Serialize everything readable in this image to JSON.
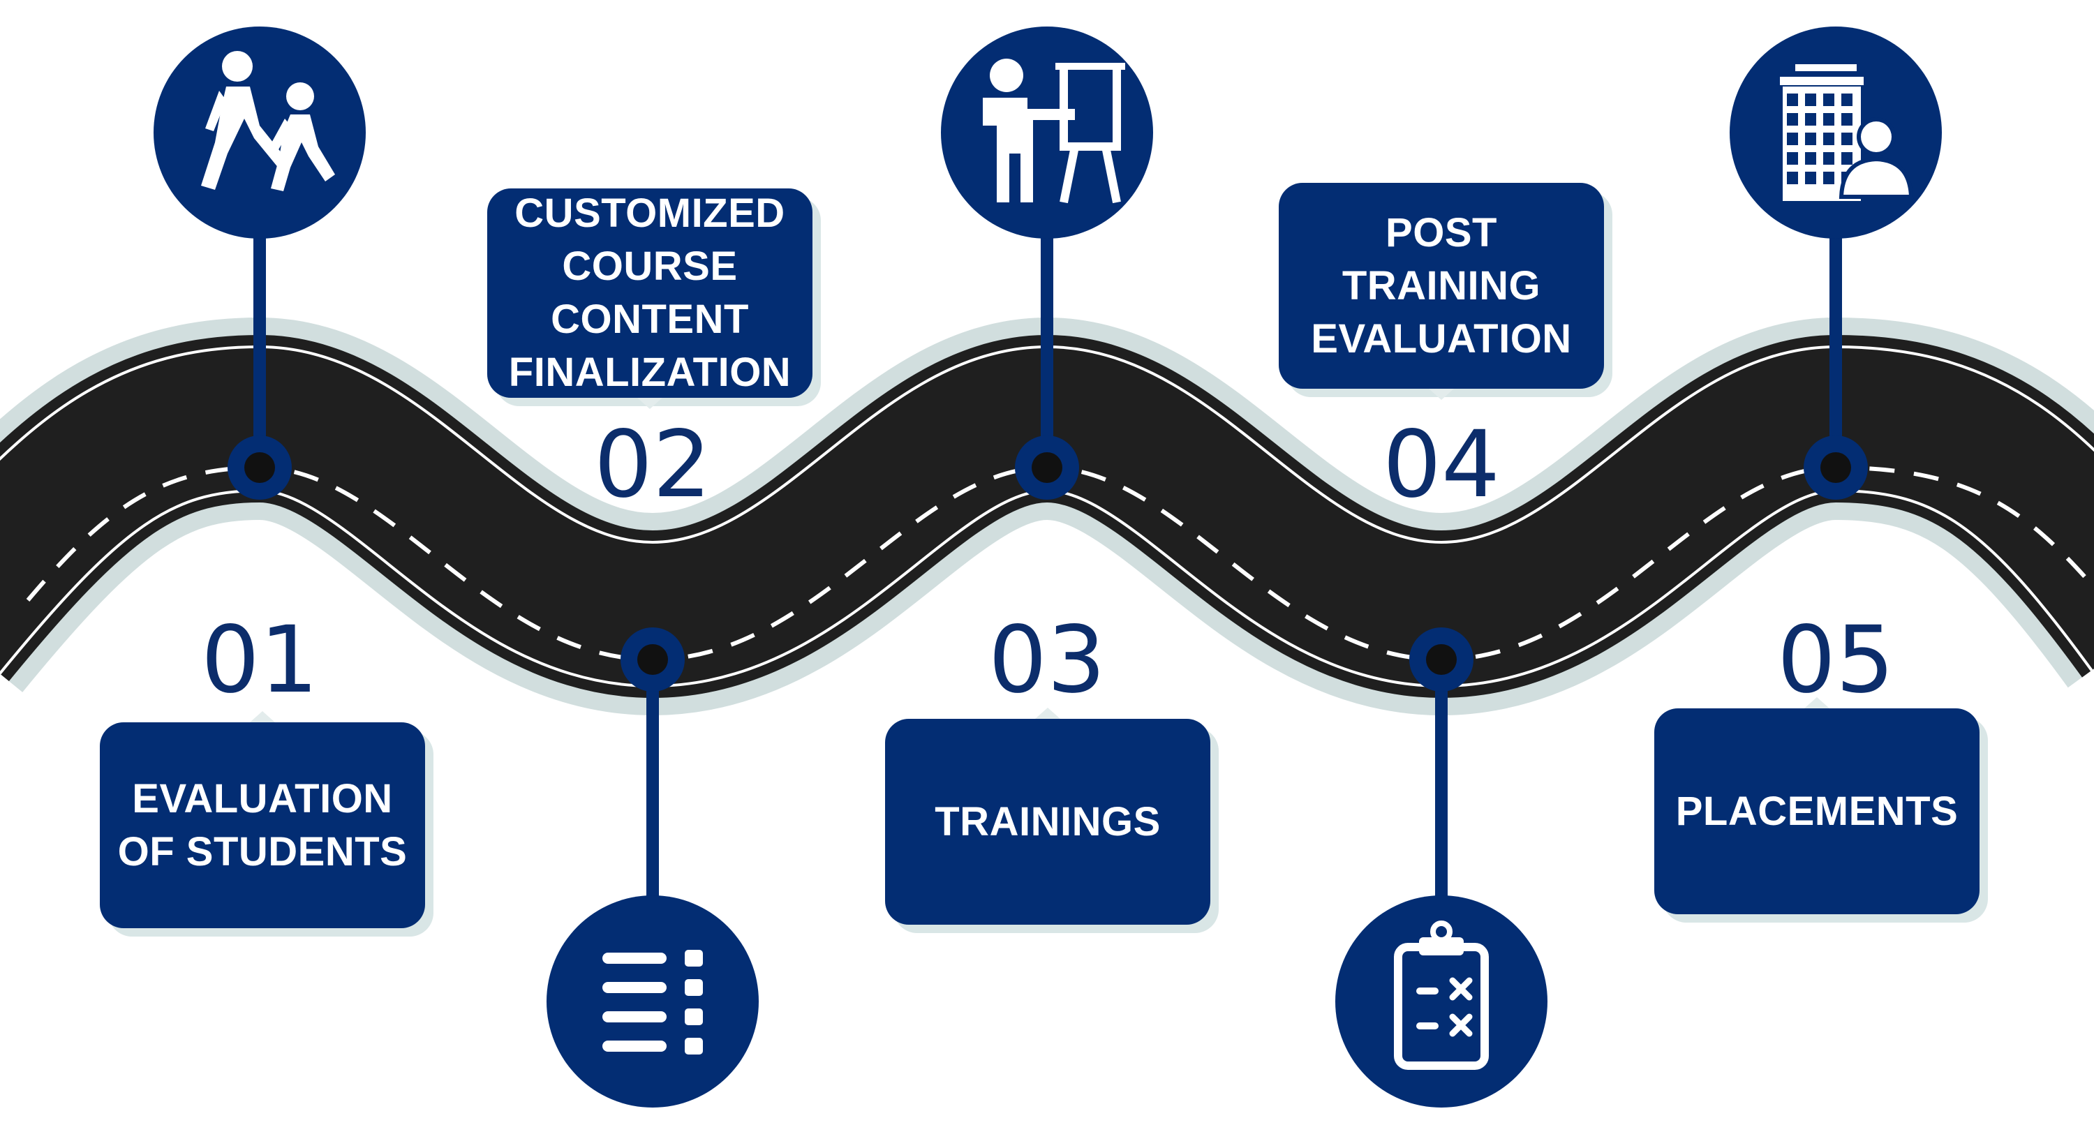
{
  "colors": {
    "navy": "#032d73",
    "road": "#1f1f1f",
    "road_shoulder": "#d1dede",
    "lane_marking": "#ffffff",
    "number_text": "#0c2d6b"
  },
  "steps": [
    {
      "number": "01",
      "label": "EVALUATION\nOF STUDENTS",
      "icon": "walking-people-icon"
    },
    {
      "number": "02",
      "label": "CUSTOMIZED\nCOURSE\nCONTENT\nFINALIZATION",
      "icon": "checklist-icon"
    },
    {
      "number": "03",
      "label": "TRAININGS",
      "icon": "trainer-presentation-icon"
    },
    {
      "number": "04",
      "label": "POST\nTRAINING\nEVALUATION",
      "icon": "clipboard-icon"
    },
    {
      "number": "05",
      "label": "PLACEMENTS",
      "icon": "office-building-person-icon"
    }
  ]
}
